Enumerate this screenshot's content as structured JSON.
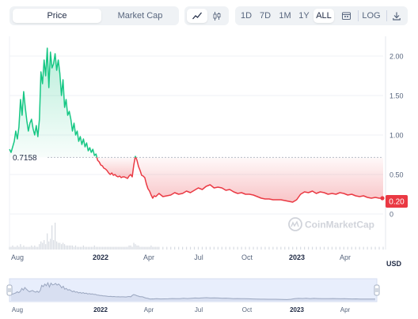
{
  "toolbar": {
    "view_tabs": [
      {
        "label": "Price",
        "active": true
      },
      {
        "label": "Market Cap",
        "active": false
      }
    ],
    "chart_style": [
      {
        "icon": "line-chart-icon",
        "active": true
      },
      {
        "icon": "candlestick-icon",
        "active": false
      }
    ],
    "ranges": [
      {
        "label": "1D",
        "active": false
      },
      {
        "label": "7D",
        "active": false
      },
      {
        "label": "1M",
        "active": false
      },
      {
        "label": "1Y",
        "active": false
      },
      {
        "label": "ALL",
        "active": true
      }
    ],
    "calendar_icon": "calendar-icon",
    "log_label": "LOG",
    "download_icon": "download-icon"
  },
  "watermark": "CoinMarketCap",
  "currency_label": "USD",
  "colors": {
    "up": "#16c784",
    "down": "#ea3943",
    "reference_line": "#b8bcc6"
  },
  "chart_data": {
    "type": "line",
    "baseline_value": "0.7158",
    "current_value": "0.20",
    "x_ticks": [
      "Aug",
      "2022",
      "Apr",
      "Jul",
      "Oct",
      "2023",
      "Apr"
    ],
    "y_ticks": [
      "2.00",
      "1.50",
      "1.00",
      "0.50",
      "0"
    ],
    "ylim": [
      -0.45,
      2.25
    ],
    "baseline": 0.7158,
    "series": [
      {
        "x": [
          0,
          2,
          4,
          6,
          8,
          10,
          12,
          14,
          16,
          18,
          20,
          22,
          24,
          26,
          28,
          30,
          32,
          34,
          36,
          38,
          40,
          42,
          44,
          46,
          48,
          50,
          52,
          54,
          56,
          58,
          60,
          62,
          64,
          66,
          68,
          70,
          72,
          74,
          76,
          78,
          80,
          82,
          84,
          86,
          88,
          90,
          92,
          94,
          96,
          98,
          100,
          102,
          104,
          106,
          108,
          110,
          112,
          114,
          116,
          118,
          120,
          122,
          124,
          126,
          128,
          130,
          132,
          134,
          136,
          138,
          140,
          142,
          144,
          146,
          148,
          150,
          152,
          154,
          156,
          158,
          160,
          162,
          164,
          166,
          168,
          170,
          172,
          174,
          176,
          178,
          180,
          182,
          184,
          186,
          188,
          190,
          195,
          200,
          205,
          210,
          215,
          220,
          225,
          230,
          235,
          240,
          245,
          250,
          255,
          260,
          265,
          270,
          275,
          280,
          285,
          290,
          295,
          300,
          305,
          310,
          315,
          320,
          325,
          330,
          335,
          340,
          345,
          350,
          355,
          360,
          365,
          370,
          375,
          380,
          385,
          390,
          395,
          400,
          405,
          410,
          415,
          420,
          425,
          430,
          435,
          440,
          445,
          450,
          455,
          460,
          465,
          470,
          475
        ],
        "y": [
          0.82,
          0.78,
          0.85,
          0.92,
          1.05,
          0.95,
          1.1,
          1.45,
          1.25,
          1.55,
          1.35,
          1.18,
          1.05,
          1.15,
          1.2,
          1.08,
          1.0,
          1.12,
          0.98,
          1.2,
          1.8,
          1.65,
          1.95,
          1.75,
          2.1,
          1.6,
          2.05,
          1.85,
          1.9,
          2.03,
          1.82,
          1.95,
          1.78,
          1.5,
          1.7,
          1.35,
          1.45,
          1.25,
          1.3,
          1.2,
          1.05,
          1.15,
          1.0,
          1.05,
          0.92,
          0.98,
          0.88,
          0.95,
          0.85,
          0.9,
          0.8,
          0.84,
          0.78,
          0.82,
          0.74,
          0.76,
          0.68,
          0.66,
          0.62,
          0.61,
          0.58,
          0.57,
          0.55,
          0.52,
          0.5,
          0.52,
          0.49,
          0.5,
          0.48,
          0.47,
          0.48,
          0.46,
          0.47,
          0.47,
          0.46,
          0.45,
          0.48,
          0.5,
          0.47,
          0.62,
          0.73,
          0.68,
          0.6,
          0.55,
          0.49,
          0.48,
          0.46,
          0.38,
          0.32,
          0.29,
          0.24,
          0.2,
          0.23,
          0.22,
          0.24,
          0.26,
          0.22,
          0.23,
          0.24,
          0.27,
          0.25,
          0.26,
          0.29,
          0.27,
          0.3,
          0.33,
          0.31,
          0.35,
          0.37,
          0.33,
          0.34,
          0.33,
          0.3,
          0.31,
          0.28,
          0.26,
          0.27,
          0.25,
          0.25,
          0.24,
          0.22,
          0.2,
          0.19,
          0.19,
          0.18,
          0.18,
          0.18,
          0.17,
          0.16,
          0.15,
          0.18,
          0.25,
          0.28,
          0.27,
          0.29,
          0.26,
          0.28,
          0.27,
          0.25,
          0.26,
          0.25,
          0.27,
          0.26,
          0.24,
          0.25,
          0.23,
          0.22,
          0.23,
          0.21,
          0.2,
          0.21,
          0.2,
          0.2
        ],
        "volume": [
          2,
          2,
          3,
          2,
          2,
          3,
          2,
          4,
          2,
          3,
          2,
          2,
          2,
          2,
          3,
          2,
          3,
          2,
          2,
          4,
          6,
          5,
          7,
          4,
          12,
          6,
          8,
          18,
          7,
          20,
          6,
          5,
          5,
          4,
          5,
          4,
          3,
          3,
          3,
          3,
          3,
          2,
          3,
          2,
          2,
          2,
          2,
          3,
          2,
          2,
          2,
          2,
          2,
          2,
          3,
          2,
          2,
          2,
          2,
          2,
          2,
          2,
          2,
          2,
          2,
          2,
          2,
          2,
          2,
          2,
          2,
          2,
          2,
          2,
          2,
          2,
          3,
          3,
          2,
          5,
          4,
          3,
          3,
          2,
          2,
          2,
          2,
          2,
          2,
          2,
          3,
          2,
          2,
          2,
          2,
          2,
          2,
          2,
          2,
          2,
          2,
          2,
          2,
          2,
          2,
          2,
          2,
          2,
          2,
          2,
          2,
          2,
          2,
          2,
          2,
          2,
          2,
          2,
          2,
          2,
          2,
          2,
          2,
          2,
          2,
          2,
          2,
          2,
          2,
          2,
          2,
          2,
          2,
          2,
          2,
          2,
          2,
          2,
          2,
          2,
          2,
          2,
          2,
          2,
          2,
          2,
          2,
          2,
          2,
          2,
          2,
          2,
          2
        ]
      }
    ],
    "navigator_x_ticks": [
      "Aug",
      "2022",
      "Apr",
      "Jul",
      "Oct",
      "2023",
      "Apr"
    ]
  }
}
